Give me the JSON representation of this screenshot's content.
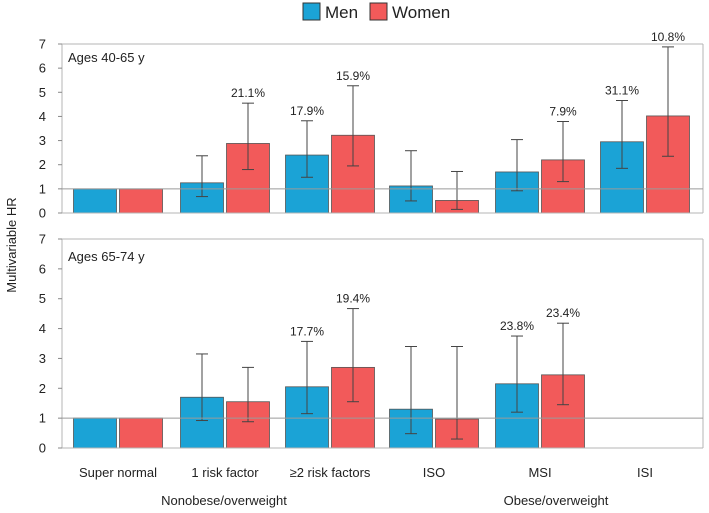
{
  "chart_data": {
    "type": "bar",
    "ylabel": "Multivariable HR",
    "legend": [
      {
        "name": "Men",
        "color": "#1ba3d6"
      },
      {
        "name": "Women",
        "color": "#f25a5a"
      }
    ],
    "colors": {
      "men": "#1ba3d6",
      "women": "#f25a5a",
      "frame": "#b4b4b4",
      "error": "#444444",
      "refline": "#9a9a9a"
    },
    "categories": [
      "Super normal",
      "1 risk factor",
      "≥2 risk factors",
      "ISO",
      "MSI",
      "ISI"
    ],
    "groups": [
      {
        "label": "Nonobese/overweight",
        "from": 0,
        "to": 2
      },
      {
        "label": "Obese/overweight",
        "from": 3,
        "to": 5
      }
    ],
    "ylim": [
      0,
      7
    ],
    "yticks": [
      "0",
      "1",
      "2",
      "3",
      "4",
      "5",
      "6",
      "7"
    ],
    "panels": [
      {
        "title": "Ages 40-65 y",
        "series": [
          {
            "name": "Men",
            "values": [
              1.0,
              1.25,
              2.4,
              1.12,
              1.7,
              2.95
            ],
            "lower": [
              null,
              0.68,
              1.48,
              0.5,
              0.92,
              1.85
            ],
            "upper": [
              null,
              2.37,
              3.82,
              2.58,
              3.04,
              4.66
            ],
            "labels": [
              "",
              "",
              "17.9%",
              "",
              "",
              "31.1%"
            ]
          },
          {
            "name": "Women",
            "values": [
              1.0,
              2.88,
              3.22,
              0.52,
              2.2,
              4.02
            ],
            "lower": [
              null,
              1.8,
              1.95,
              0.15,
              1.3,
              2.35
            ],
            "upper": [
              null,
              4.55,
              5.27,
              1.72,
              3.79,
              6.88
            ],
            "labels": [
              "",
              "21.1%",
              "15.9%",
              "",
              "7.9%",
              "10.8%"
            ]
          }
        ]
      },
      {
        "title": "Ages 65-74 y",
        "series": [
          {
            "name": "Men",
            "values": [
              1.0,
              1.7,
              2.05,
              1.3,
              2.15,
              null
            ],
            "lower": [
              null,
              0.92,
              1.15,
              0.48,
              1.2,
              null
            ],
            "upper": [
              null,
              3.15,
              3.57,
              3.4,
              3.75,
              null
            ],
            "labels": [
              "",
              "",
              "17.7%",
              "",
              "23.8%",
              ""
            ]
          },
          {
            "name": "Women",
            "values": [
              1.0,
              1.55,
              2.7,
              0.97,
              2.45,
              null
            ],
            "lower": [
              null,
              0.88,
              1.55,
              0.3,
              1.45,
              null
            ],
            "upper": [
              null,
              2.7,
              4.67,
              3.4,
              4.18,
              null
            ],
            "labels": [
              "",
              "",
              "19.4%",
              "",
              "23.4%",
              ""
            ]
          }
        ]
      }
    ]
  }
}
